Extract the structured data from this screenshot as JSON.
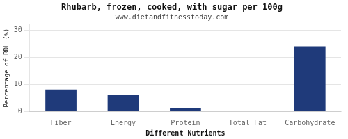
{
  "chart_data": {
    "type": "bar",
    "title": "Rhubarb, frozen, cooked, with sugar per 100g",
    "subtitle": "www.dietandfitnesstoday.com",
    "xlabel": "Different Nutrients",
    "ylabel": "Percentage of RDH (%)",
    "categories": [
      "Fiber",
      "Energy",
      "Protein",
      "Total Fat",
      "Carbohydrate"
    ],
    "values": [
      8.0,
      6.0,
      1.0,
      0.1,
      24.0
    ],
    "color": "#1f3a7a",
    "ylim": [
      0,
      32
    ],
    "yticks": [
      0,
      10,
      20,
      30
    ],
    "grid": true
  }
}
